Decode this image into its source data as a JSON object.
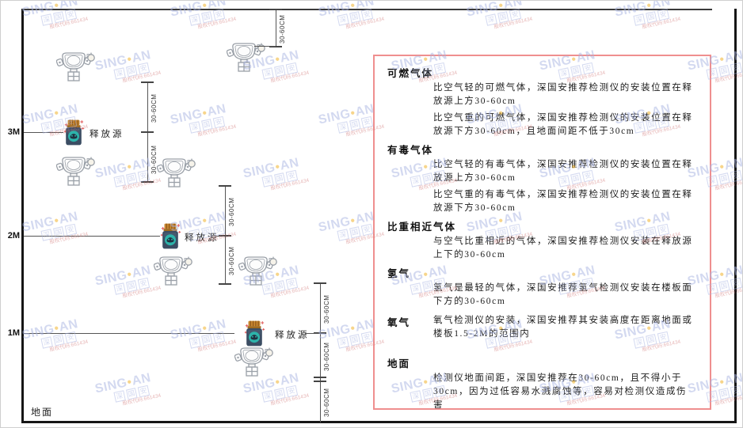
{
  "watermark": {
    "brand_left": "SING",
    "brand_right": "AN",
    "dot": "●",
    "cn_chars": [
      "深",
      "国",
      "安"
    ],
    "code": "股权代码:661434",
    "brand_color": "#a9b4e2",
    "dot_color": "#f0ad1a",
    "code_color": "#cf6f6f"
  },
  "diagram": {
    "dim_label": "30-60CM",
    "source_label": "释放源",
    "ground_label": "地面",
    "height_labels": [
      "3M",
      "2M",
      "1M"
    ]
  },
  "panel": {
    "border_color": "#ef8f8f",
    "sections": [
      {
        "title": "可燃气体",
        "paragraphs": [
          "比空气轻的可燃气体，深国安推荐检测仪的安装位置在释放源上方30-60cm",
          "比空气重的可燃气体，深国安推荐检测仪的安装位置在释放源下方30-60cm，且地面间距不低于30cm"
        ]
      },
      {
        "title": "有毒气体",
        "paragraphs": [
          "比空气轻的有毒气体，深国安推荐检测仪的安装位置在释放源上方30-60cm",
          "比空气重的有毒气体，深国安推荐检测仪的安装位置在释放源下方30-60cm"
        ]
      },
      {
        "title": "比重相近气体",
        "paragraphs": [
          "与空气比重相近的气体，深国安推荐检测仪安装在释放源上下的30-60cm"
        ]
      },
      {
        "title": "氢气",
        "paragraphs": [
          "氢气是最轻的气体，深国安推荐氢气检测仪安装在楼板面下方的30-60cm"
        ]
      },
      {
        "title": "氧气",
        "paragraphs": [
          "氧气检测仪的安装，深国安推荐其安装高度在距离地面或楼板1.5-2M的范围内"
        ]
      },
      {
        "title": "地面",
        "paragraphs": [
          "检测仪地面间距，深国安推荐在30-60cm，且不得小于30cm，因为过低容易水溅腐蚀等，容易对检测仪造成伤害"
        ]
      }
    ]
  }
}
